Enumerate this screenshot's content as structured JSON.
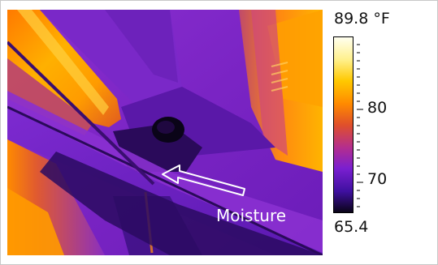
{
  "image": {
    "annotation_label": "Moisture",
    "arrow_icon": "arrow-left-icon"
  },
  "scale": {
    "max_label": "89.8 °F",
    "min_label": "65.4",
    "tick_labels": [
      "80",
      "70"
    ],
    "max_value": 89.8,
    "min_value": 65.4,
    "unit": "°F",
    "palette": [
      "#fffff0",
      "#fff08a",
      "#ffc800",
      "#ff8a00",
      "#e0502a",
      "#b42e8e",
      "#7a1fd0",
      "#3f10a0",
      "#0a0418"
    ]
  }
}
